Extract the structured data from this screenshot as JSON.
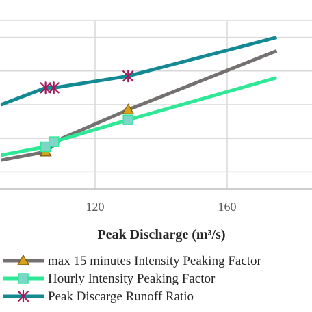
{
  "chart_data": {
    "type": "line",
    "xlabel": "Peak  Discharge  (m³/s)",
    "x_ticks": [
      120,
      160
    ],
    "xlim": [
      91.5,
      175
    ],
    "ylim": [
      0,
      1
    ],
    "y_gridlines": [
      0.1,
      0.3,
      0.5,
      0.7,
      0.9
    ],
    "grid": true,
    "legend_position": "bottom",
    "series": [
      {
        "name": "max 15 minutes Intensity Peaking Factor",
        "color": "#767171",
        "marker": "triangle",
        "marker_fill": "#d9a21b",
        "x": [
          91.5,
          105,
          110,
          130,
          175
        ],
        "y": [
          0.17,
          0.22,
          0.3,
          0.47,
          0.82
        ],
        "marker_points": [
          1,
          3
        ]
      },
      {
        "name": "Hourly Intensity Peaking Factor",
        "color": "#2ee896",
        "marker": "square",
        "marker_fill": "#7fd6c8",
        "x": [
          91.5,
          105,
          107.5,
          130,
          175
        ],
        "y": [
          0.2,
          0.25,
          0.28,
          0.41,
          0.66
        ],
        "marker_points": [
          1,
          2,
          3
        ]
      },
      {
        "name": "Peak Discarge Runoff Ratio",
        "color": "#138a93",
        "marker": "asterisk",
        "marker_fill": "#a01a5c",
        "x": [
          91.5,
          105,
          107.5,
          130,
          175
        ],
        "y": [
          0.5,
          0.6,
          0.6,
          0.67,
          0.9
        ],
        "marker_points": [
          1,
          2,
          3
        ]
      }
    ]
  }
}
